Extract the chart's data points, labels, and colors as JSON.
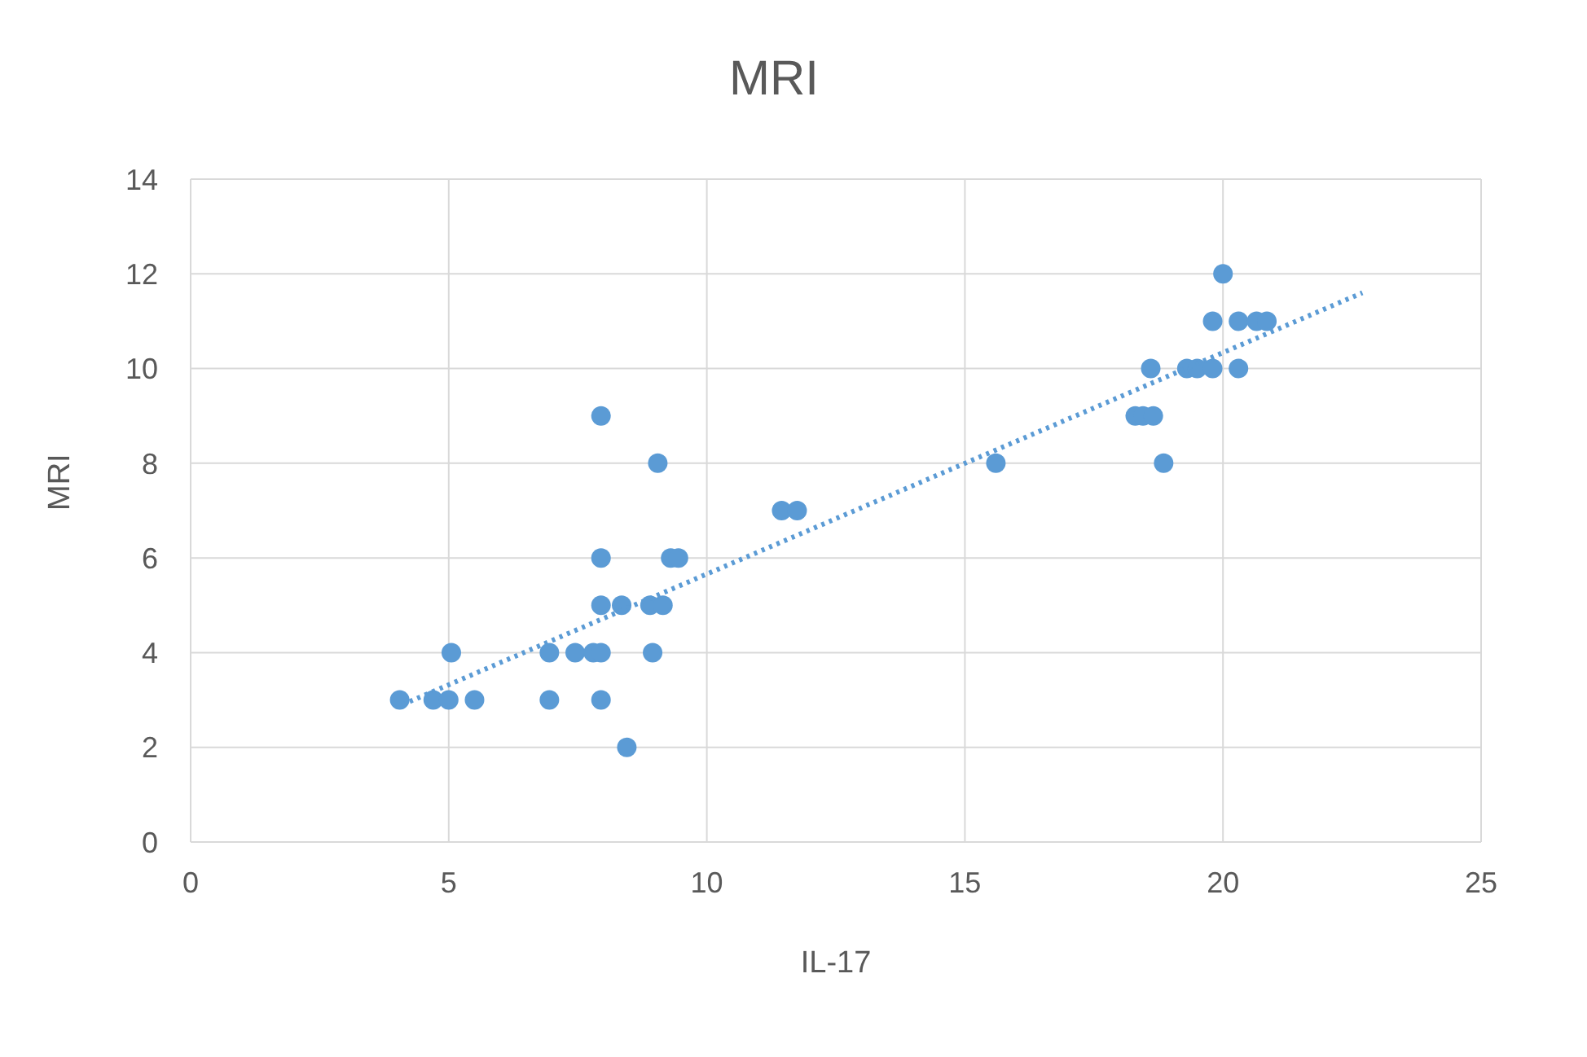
{
  "chart_data": {
    "type": "scatter",
    "title": "MRI",
    "xlabel": "IL-17",
    "ylabel": "MRI",
    "xlim": [
      0,
      25
    ],
    "xticks": [
      0,
      5,
      10,
      15,
      20,
      25
    ],
    "ylim": [
      0,
      14
    ],
    "yticks": [
      0,
      2,
      4,
      6,
      8,
      10,
      12,
      14
    ],
    "grid": true,
    "legend": false,
    "marker": "circle",
    "series": [
      {
        "color": "#5b9bd5",
        "x": [
          4.05,
          4.7,
          5.0,
          5.05,
          5.5,
          6.95,
          6.95,
          7.45,
          7.8,
          7.95,
          7.95,
          7.95,
          7.95,
          7.95,
          8.35,
          8.45,
          8.9,
          8.95,
          9.05,
          9.15,
          9.3,
          9.45,
          11.45,
          11.75,
          15.6,
          18.3,
          18.45,
          18.65,
          18.6,
          18.85,
          19.3,
          19.5,
          19.8,
          19.8,
          20.0,
          20.3,
          20.3,
          20.65,
          20.85
        ],
        "values": [
          3,
          3,
          3,
          4,
          3,
          4,
          3,
          4,
          4,
          9,
          6,
          5,
          4,
          3,
          5,
          2,
          5,
          4,
          8,
          5,
          6,
          6,
          7,
          7,
          8,
          9,
          9,
          9,
          10,
          8,
          10,
          10,
          11,
          10,
          12,
          11,
          10,
          11,
          11
        ]
      },
      {
        "type": "line",
        "color": "#5b9bd5",
        "marker": "none",
        "line_style": "dotted",
        "x": [
          4.1,
          22.7
        ],
        "values": [
          2.9,
          11.6
        ]
      }
    ]
  }
}
